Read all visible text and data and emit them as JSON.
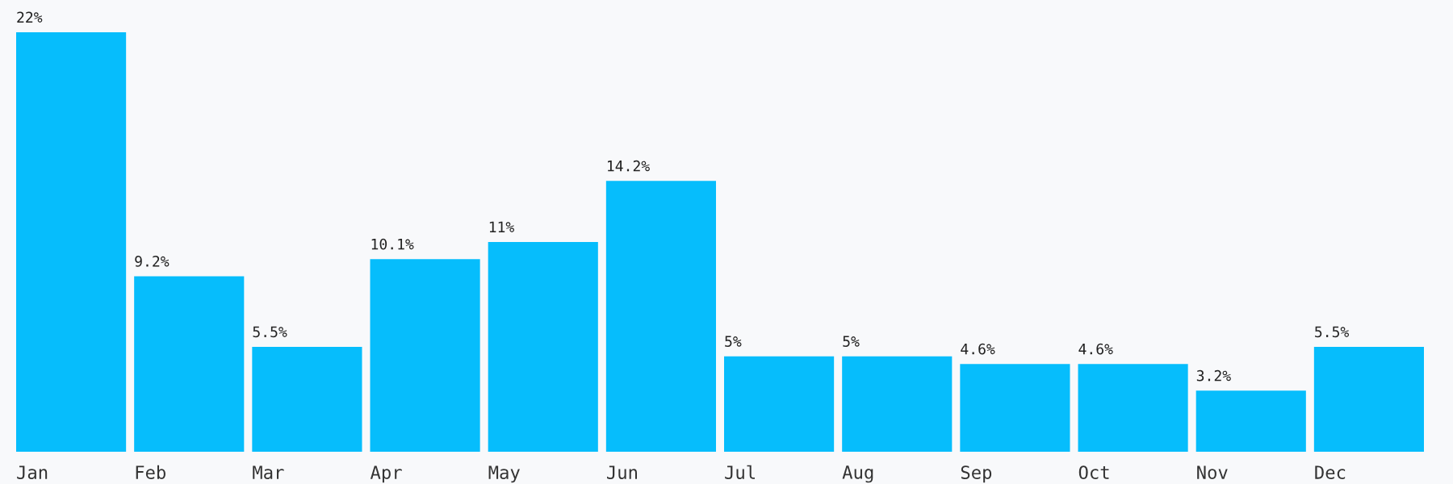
{
  "chart_data": {
    "type": "bar",
    "categories": [
      "Jan",
      "Feb",
      "Mar",
      "Apr",
      "May",
      "Jun",
      "Jul",
      "Aug",
      "Sep",
      "Oct",
      "Nov",
      "Dec"
    ],
    "values": [
      22,
      9.2,
      5.5,
      10.1,
      11,
      14.2,
      5,
      5,
      4.6,
      4.6,
      3.2,
      5.5
    ],
    "value_labels": [
      "22%",
      "9.2%",
      "5.5%",
      "10.1%",
      "11%",
      "14.2%",
      "5%",
      "5%",
      "4.6%",
      "4.6%",
      "3.2%",
      "5.5%"
    ],
    "color": "#06bdfc",
    "grid": false,
    "legend": false,
    "tick_labels": "x"
  }
}
